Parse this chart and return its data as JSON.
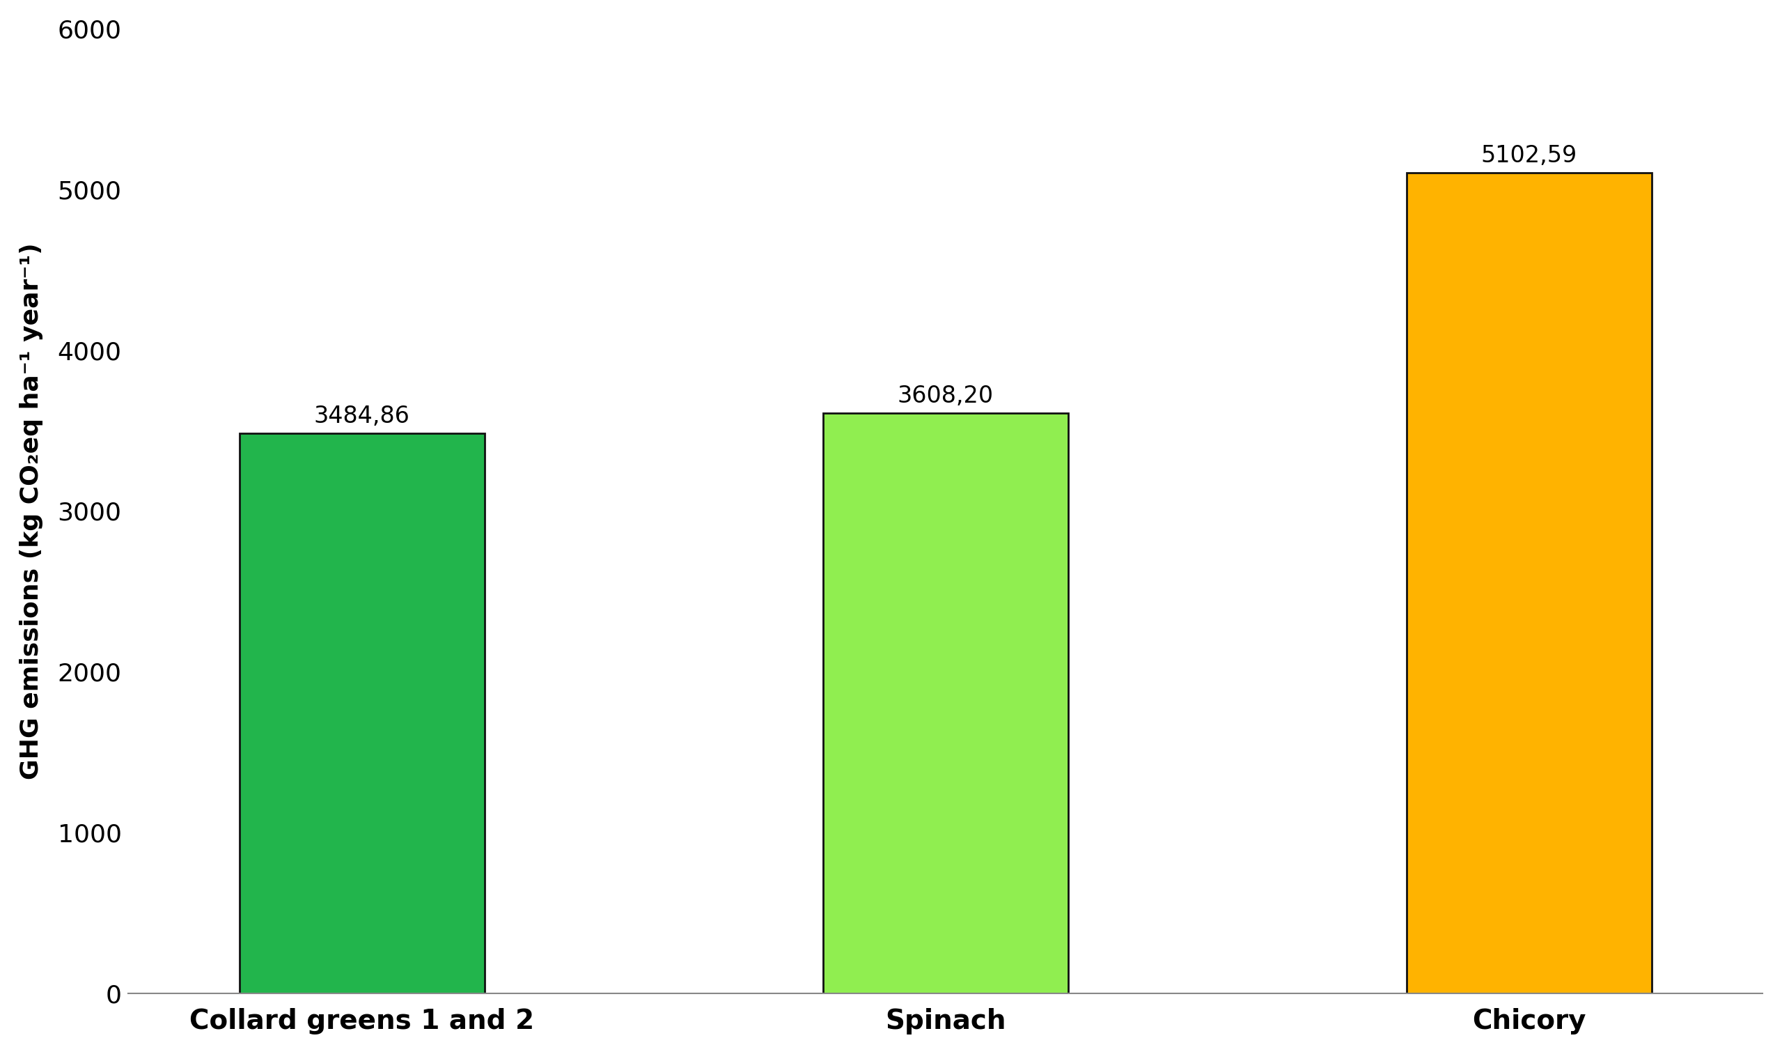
{
  "categories": [
    "Collard greens 1 and 2",
    "Spinach",
    "Chicory"
  ],
  "values": [
    3484.86,
    3608.2,
    5102.59
  ],
  "bar_colors": [
    "#22b54c",
    "#90ee50",
    "#ffb300"
  ],
  "bar_edgecolors": [
    "#111111",
    "#111111",
    "#111111"
  ],
  "bar_labels": [
    "3484,86",
    "3608,20",
    "5102,59"
  ],
  "ylabel": "GHG emissions (kg CO₂eq ha⁻¹ year⁻¹)",
  "ylim": [
    0,
    6000
  ],
  "yticks": [
    0,
    1000,
    2000,
    3000,
    4000,
    5000,
    6000
  ],
  "background_color": "#ffffff",
  "bar_width": 0.42,
  "tick_fontsize": 26,
  "ylabel_fontsize": 26,
  "annotation_fontsize": 24,
  "xlabel_fontsize": 28,
  "edgewidth": 2.0,
  "bar_positions": [
    0.25,
    0.5,
    0.75
  ],
  "xlim": [
    0.0,
    1.0
  ]
}
